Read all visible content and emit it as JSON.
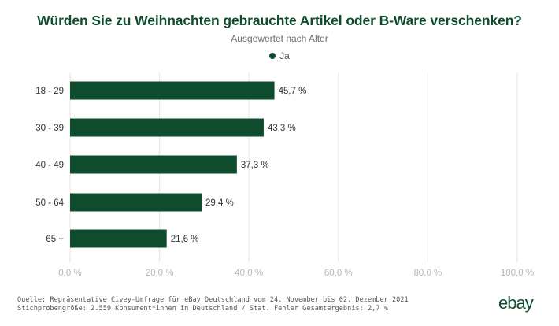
{
  "title": "Würden Sie zu Weihnachten gebrauchte Artikel oder B-Ware verschenken?",
  "subtitle": "Ausgewertet nach Alter",
  "legend": {
    "label": "Ja",
    "color": "#0f4c2e"
  },
  "chart_data": {
    "type": "bar",
    "orientation": "horizontal",
    "categories": [
      "18 - 29",
      "30 - 39",
      "40 - 49",
      "50 - 64",
      "65 +"
    ],
    "series": [
      {
        "name": "Ja",
        "values": [
          45.7,
          43.3,
          37.3,
          29.4,
          21.6
        ],
        "color": "#0f4c2e"
      }
    ],
    "value_labels": [
      "45,7 %",
      "43,3 %",
      "37,3 %",
      "29,4 %",
      "21,6 %"
    ],
    "x_ticks": [
      0,
      20,
      40,
      60,
      80,
      100
    ],
    "x_tick_labels": [
      "0,0 %",
      "20,0 %",
      "40,0 %",
      "60,0 %",
      "80,0 %",
      "100,0 %"
    ],
    "xlim": [
      0,
      100
    ],
    "grid": true,
    "legend_position": "top-center"
  },
  "footer": {
    "line1": "Quelle: Repräsentative Civey-Umfrage für eBay Deutschland vom 24. November bis 02. Dezember 2021",
    "line2": "Stichprobengröße: 2.559 Konsument*innen in Deutschland / Stat. Fehler Gesamtergebnis: 2,7 %"
  },
  "logo": "ebay"
}
